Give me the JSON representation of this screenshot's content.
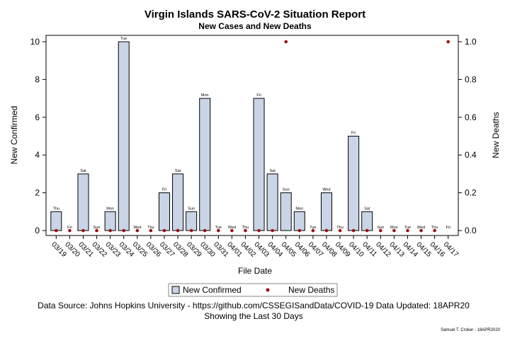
{
  "title": "Virgin Islands SARS-CoV-2 Situation Report",
  "subtitle": "New Cases and New Deaths",
  "chart_data": {
    "type": "bar",
    "xlabel": "File Date",
    "ylabel": "New Confirmed",
    "y2label": "New Deaths",
    "ylim": [
      0,
      10.6
    ],
    "y2lim": [
      0,
      1.06
    ],
    "yticks": [
      "0",
      "2",
      "4",
      "6",
      "8",
      "10"
    ],
    "y2ticks": [
      "0.0",
      "0.2",
      "0.4",
      "0.6",
      "0.8",
      "1.0"
    ],
    "categories": [
      "03/19",
      "03/20",
      "03/21",
      "03/22",
      "03/23",
      "03/24",
      "03/25",
      "03/26",
      "03/27",
      "03/28",
      "03/29",
      "03/30",
      "03/31",
      "04/01",
      "04/02",
      "04/03",
      "04/04",
      "04/05",
      "04/06",
      "04/07",
      "04/08",
      "04/09",
      "04/10",
      "04/11",
      "04/12",
      "04/13",
      "04/14",
      "04/15",
      "04/16",
      "04/17"
    ],
    "weekdays": [
      "Thu",
      "Fri",
      "Sat",
      "Sun",
      "Mon",
      "Tue",
      "Wed",
      "Thu",
      "Fri",
      "Sat",
      "Sun",
      "Mon",
      "Tue",
      "Wed",
      "Thu",
      "Fri",
      "Sat",
      "Sun",
      "Mon",
      "Tue",
      "Wed",
      "Thu",
      "Fri",
      "Sat",
      "Sun",
      "Mon",
      "Tue",
      "Wed",
      "Thu",
      "Fri"
    ],
    "series": [
      {
        "name": "New Confirmed",
        "kind": "bar",
        "axis": "left",
        "color": "#c9d5e6",
        "values": [
          1,
          0,
          3,
          0,
          1,
          10,
          0,
          0,
          2,
          3,
          1,
          7,
          0,
          0,
          0,
          7,
          3,
          2,
          1,
          0,
          2,
          0,
          5,
          1,
          0,
          0,
          0,
          0,
          0,
          0
        ]
      },
      {
        "name": "New Deaths",
        "kind": "scatter",
        "axis": "right",
        "color": "#a01010",
        "values": [
          0,
          0,
          0,
          0,
          0,
          0,
          0,
          0,
          0,
          0,
          0,
          0,
          0,
          0,
          0,
          0,
          0,
          1,
          0,
          0,
          0,
          0,
          0,
          0,
          0,
          0,
          0,
          0,
          0,
          1
        ]
      }
    ],
    "grid": false,
    "legend": "bottom-center"
  },
  "footer": {
    "source": "Data Source: Johns Hopkins University - https://github.com/CSSEGISandData/COVID-19 Data Updated: 18APR20",
    "note": "Showing the Last 30 Days",
    "credit": "Samuel T. Croker - 18APR2020"
  }
}
